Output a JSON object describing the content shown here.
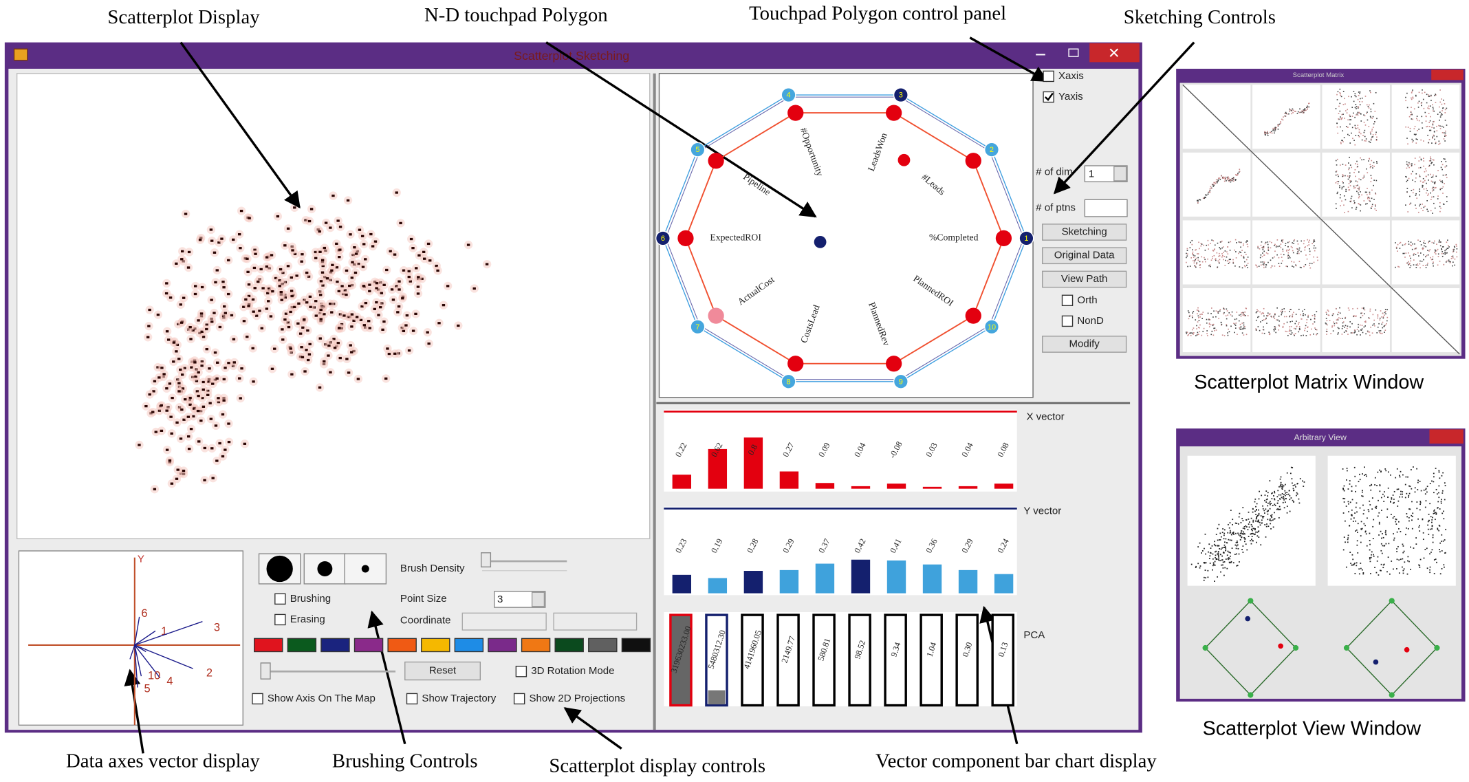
{
  "annotations": {
    "scatterplot_display": "Scatterplot Display",
    "nd_touchpad": "N-D touchpad Polygon",
    "touchpad_control_panel": "Touchpad Polygon control panel",
    "sketching_controls": "Sketching Controls",
    "data_axes": "Data axes vector display",
    "brushing_controls": "Brushing Controls",
    "display_controls": "Scatterplot display controls",
    "bar_chart_display": "Vector component bar chart display",
    "matrix_window": "Scatterplot Matrix Window",
    "view_window": "Scatterplot View Window"
  },
  "main_window": {
    "title": "Scatterplot Sketching"
  },
  "axes_vector_display": {
    "axis_label": "Y",
    "vector_labels": [
      "6",
      "1",
      "3",
      "2",
      "4",
      "10",
      "5"
    ]
  },
  "touchpad": {
    "vertex_labels": [
      "1",
      "2",
      "3",
      "4",
      "5",
      "6",
      "7",
      "8",
      "9",
      "10"
    ],
    "dimensions": [
      "%Completed",
      "#Leads",
      "LeadsWon",
      "#Opportunity",
      "Pipeline",
      "ExpectedROI",
      "ActualCost",
      "CostsLead",
      "PlannedRev",
      "PlannedROI"
    ],
    "vertex_colors": [
      "#14206e",
      "#45a6dd",
      "#14206e",
      "#45a6dd",
      "#45a6dd",
      "#14206e",
      "#45a6dd",
      "#45a6dd",
      "#45a6dd",
      "#45a6dd"
    ],
    "point_colors": [
      "#e3000f",
      "#e3000f",
      "#e3000f",
      "#e3000f",
      "#e3000f",
      "#e3000f",
      "#f08a9a",
      "#e3000f",
      "#e3000f",
      "#e3000f"
    ]
  },
  "control_panel": {
    "checkboxes": [
      {
        "label": "Xaxis",
        "checked": false
      },
      {
        "label": "Yaxis",
        "checked": true
      }
    ]
  },
  "sketching_controls": {
    "dims_label": "# of dim",
    "dims_value": "1",
    "points_label": "# of ptns",
    "buttons": [
      "Sketching",
      "Original Data",
      "View Path"
    ],
    "checkboxes": [
      {
        "label": "Orth",
        "checked": false
      },
      {
        "label": "NonD",
        "checked": false
      }
    ],
    "modify_button": "Modify"
  },
  "bar_charts": {
    "x_vector": {
      "label": "X vector",
      "values": [
        0.22,
        0.62,
        0.8,
        0.27,
        0.09,
        0.04,
        -0.08,
        0.03,
        0.04,
        0.08
      ],
      "color": "#e3000f"
    },
    "y_vector": {
      "label": "Y vector",
      "values": [
        0.23,
        0.19,
        0.28,
        0.29,
        0.37,
        0.42,
        0.41,
        0.36,
        0.29,
        0.24
      ],
      "colors": [
        "#14206e",
        "#3fa2dc",
        "#14206e",
        "#3fa2dc",
        "#3fa2dc",
        "#14206e",
        "#3fa2dc",
        "#3fa2dc",
        "#3fa2dc",
        "#3fa2dc"
      ]
    },
    "pca": {
      "label": "PCA",
      "labels": [
        "319630233.00",
        "5480312.30",
        "4141960.05",
        "2149.77",
        "580.81",
        "98.52",
        "9.34",
        "1.04",
        "0.30",
        "0.13"
      ]
    }
  },
  "brushing_controls": {
    "brush_density": "Brush Density",
    "checkboxes": [
      {
        "label": "Brushing",
        "checked": false
      },
      {
        "label": "Erasing",
        "checked": false
      }
    ],
    "point_size_label": "Point Size",
    "point_size": "3",
    "coordinate_label": "Coordinate",
    "palette": [
      "#e0141e",
      "#0b5a1e",
      "#1a237e",
      "#8a2a8a",
      "#f05a14",
      "#f5b800",
      "#1e8ce6",
      "#7a2a8a",
      "#f07814",
      "#0b4a1e",
      "#606060",
      "#101010"
    ]
  },
  "display_controls": {
    "reset_button": "Reset",
    "checkboxes": [
      {
        "label": "3D Rotation Mode",
        "checked": false
      },
      {
        "label": "Show Axis On The Map",
        "checked": false
      },
      {
        "label": "Show Trajectory",
        "checked": false
      },
      {
        "label": "Show 2D Projections",
        "checked": false
      }
    ]
  },
  "matrix_window": {
    "title": "Scatterplot Matrix"
  },
  "view_window": {
    "title": "Arbitrary View"
  }
}
